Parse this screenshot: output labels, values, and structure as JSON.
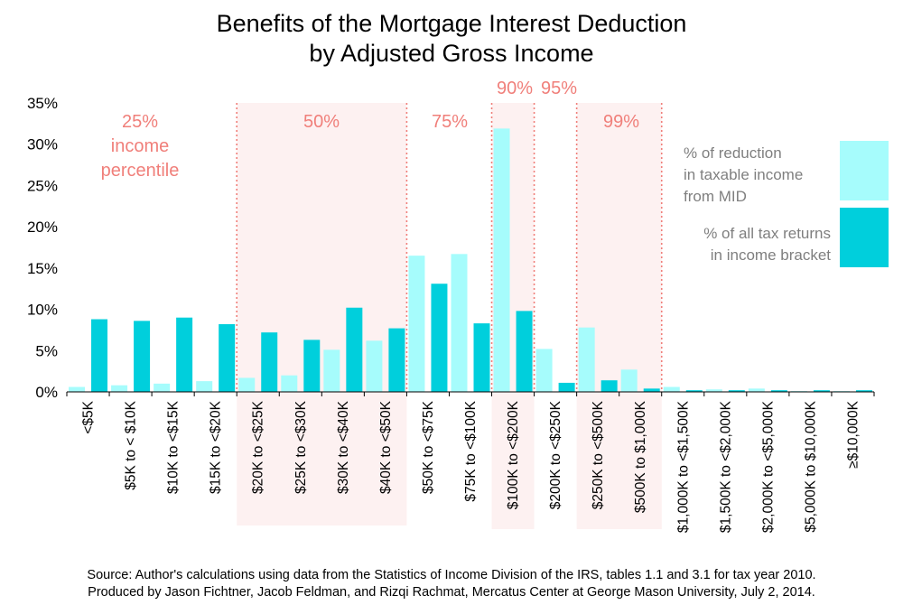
{
  "title_line1": "Benefits of the Mortgage Interest Deduction",
  "title_line2": "by Adjusted Gross Income",
  "source_line1": "Source: Author's calculations using data from the Statistics of Income Division of the IRS, tables 1.1 and 3.1 for tax year 2010.",
  "source_line2": "Produced by Jason Fichtner, Jacob Feldman, and Rizqi Rachmat, Mercatus Center at George Mason University, July 2, 2014.",
  "colors": {
    "mid_series": "#a6fcfc",
    "returns_series": "#00cfdc",
    "shade": "#fdf1f1",
    "percentile_text": "#f07f7a",
    "divider": "#f07f7a",
    "legend_text": "#7f7f7f"
  },
  "chart_data": {
    "type": "bar",
    "title": "Benefits of the Mortgage Interest Deduction by Adjusted Gross Income",
    "xlabel": "",
    "ylabel": "",
    "ylim": [
      0,
      35
    ],
    "yticks": [
      "0%",
      "5%",
      "10%",
      "15%",
      "20%",
      "25%",
      "30%",
      "35%"
    ],
    "grid": false,
    "legend_position": "right",
    "categories": [
      "<$5K",
      "$5K to < $10K",
      "$10K to <$15K",
      "$15K to <$20K",
      "$20K to <$25K",
      "$25K to <$30K",
      "$30K to <$40K",
      "$40K to <$50K",
      "$50K to <$75K",
      "$75K to <$100K",
      "$100K to <$200K",
      "$200K to <$250K",
      "$250K to <$500K",
      "$500K to $1,000K",
      "$1,000K to <$1,500K",
      "$1,500K to <$2,000K",
      "$2,000K to <$5,000K",
      "$5,000K to $10,000K",
      "≥$10,000K"
    ],
    "series": [
      {
        "name": "% of reduction in taxable income from MID",
        "values": [
          0.6,
          0.8,
          1.0,
          1.3,
          1.7,
          2.0,
          5.1,
          6.2,
          16.5,
          16.7,
          31.9,
          5.2,
          7.8,
          2.7,
          0.6,
          0.3,
          0.4,
          0.1,
          0.1
        ]
      },
      {
        "name": "% of all tax returns in income bracket",
        "values": [
          8.8,
          8.6,
          9.0,
          8.2,
          7.2,
          6.3,
          10.2,
          7.7,
          13.1,
          8.3,
          9.8,
          1.1,
          1.4,
          0.4,
          0.2,
          0.2,
          0.2,
          0.2,
          0.2
        ]
      }
    ],
    "legend": [
      {
        "line1": "% of reduction",
        "line2": "in taxable income",
        "line3": "from MID"
      },
      {
        "line1": "% of all tax returns",
        "line2": "in income bracket"
      }
    ],
    "percentile_labels": [
      {
        "lines": [
          "25%",
          "income",
          "percentile"
        ],
        "after_index": 0
      },
      {
        "lines": [
          "50%"
        ],
        "after_index": 4
      },
      {
        "lines": [
          "75%"
        ],
        "after_index": 8
      },
      {
        "lines": [
          "90%"
        ],
        "after_index": 10
      },
      {
        "lines": [
          "95%"
        ],
        "after_index": 11
      },
      {
        "lines": [
          "99%"
        ],
        "after_index": 12
      }
    ]
  }
}
